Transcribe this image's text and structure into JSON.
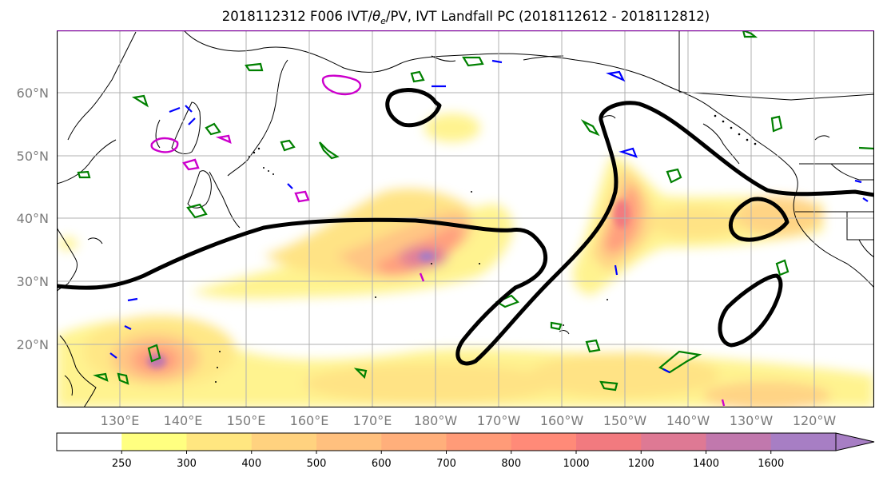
{
  "title": "2018112312 F006 IVT/θe/PV, IVT Landfall PC (2018112612 - 2018112812)",
  "title_parts": {
    "prefix": "2018112312 F006 IVT/",
    "theta": "θ",
    "sub": "e",
    "suffix": "/PV, IVT Landfall PC (2018112612 - 2018112812)"
  },
  "map": {
    "lat_labels": [
      "60°N",
      "50°N",
      "40°N",
      "30°N",
      "20°N"
    ],
    "lon_labels": [
      "130°E",
      "140°E",
      "150°E",
      "160°E",
      "170°E",
      "180°W",
      "170°W",
      "160°W",
      "150°W",
      "140°W",
      "130°W",
      "120°W"
    ],
    "colors": {
      "land_outline": "#000000",
      "theta_e_contour": "#000000",
      "pv_green": "#008000",
      "pv_blue": "#0000ff",
      "pv_magenta": "#cc00cc",
      "grid": "#b0b0b0",
      "label": "#7a7a7a"
    }
  },
  "colorbar": {
    "ticks": [
      "250",
      "300",
      "400",
      "500",
      "600",
      "700",
      "800",
      "1000",
      "1200",
      "1400",
      "1600"
    ],
    "colors": [
      "#ffffff",
      "#ffff80",
      "#ffe680",
      "#ffd27f",
      "#ffc07e",
      "#ffaf7b",
      "#ff9b78",
      "#ff8a78",
      "#f27a7f",
      "#de7994",
      "#c178ad",
      "#a77ec4"
    ]
  }
}
